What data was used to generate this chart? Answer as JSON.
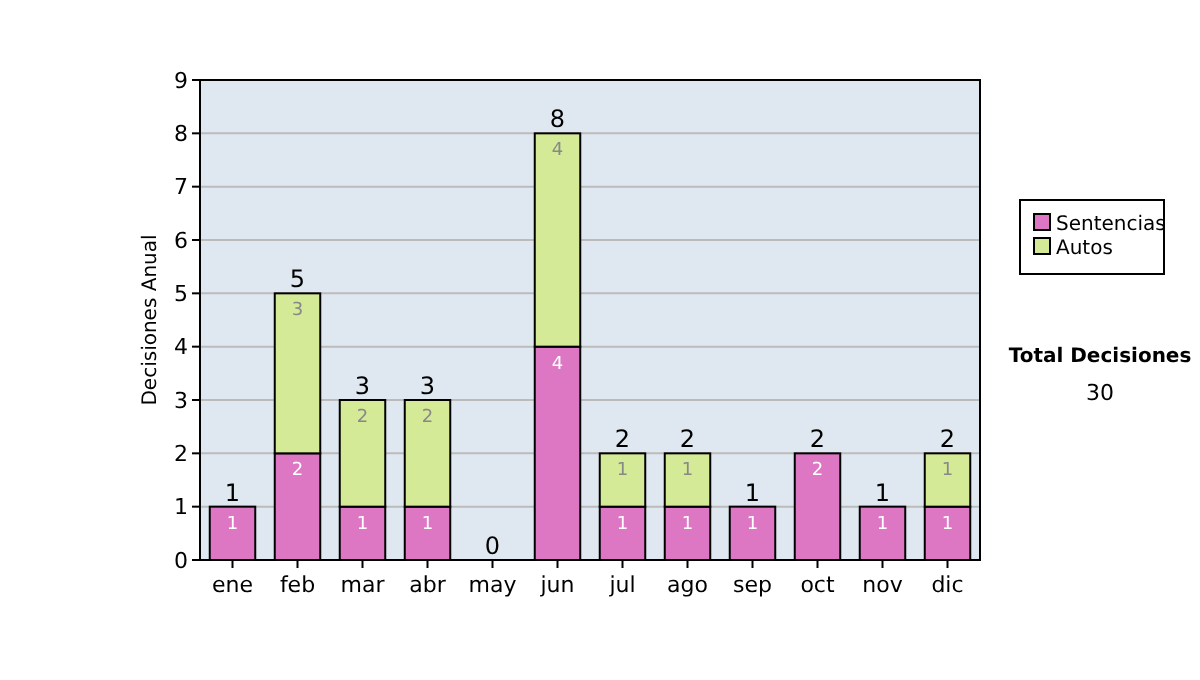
{
  "chart_data": {
    "type": "bar",
    "ylabel": "Decisiones Anual",
    "categories": [
      "ene",
      "feb",
      "mar",
      "abr",
      "may",
      "jun",
      "jul",
      "ago",
      "sep",
      "oct",
      "nov",
      "dic"
    ],
    "series": [
      {
        "name": "Sentencias",
        "color": "#dd77c4",
        "values": [
          1,
          2,
          1,
          1,
          0,
          4,
          1,
          1,
          1,
          2,
          1,
          1
        ],
        "value_labels": [
          "1",
          "2",
          "1",
          "1",
          null,
          "4",
          "1",
          "1",
          "1",
          "2",
          "1",
          "1"
        ]
      },
      {
        "name": "Autos",
        "color": "#d4ea96",
        "values": [
          0,
          3,
          2,
          2,
          0,
          4,
          1,
          1,
          0,
          0,
          0,
          1
        ],
        "value_labels": [
          null,
          "3",
          "2",
          "2",
          null,
          "4",
          "1",
          "1",
          null,
          null,
          null,
          "1"
        ]
      }
    ],
    "stacked": true,
    "totals": [
      "1",
      "5",
      "3",
      "3",
      "0",
      "8",
      "2",
      "2",
      "1",
      "2",
      "1",
      "2"
    ],
    "ylim": [
      0,
      9
    ],
    "yticks": [
      0,
      1,
      2,
      3,
      4,
      5,
      6,
      7,
      8,
      9
    ],
    "grid": "y",
    "legend": "right",
    "annotations": [
      "Total Decisiones",
      "30"
    ]
  }
}
